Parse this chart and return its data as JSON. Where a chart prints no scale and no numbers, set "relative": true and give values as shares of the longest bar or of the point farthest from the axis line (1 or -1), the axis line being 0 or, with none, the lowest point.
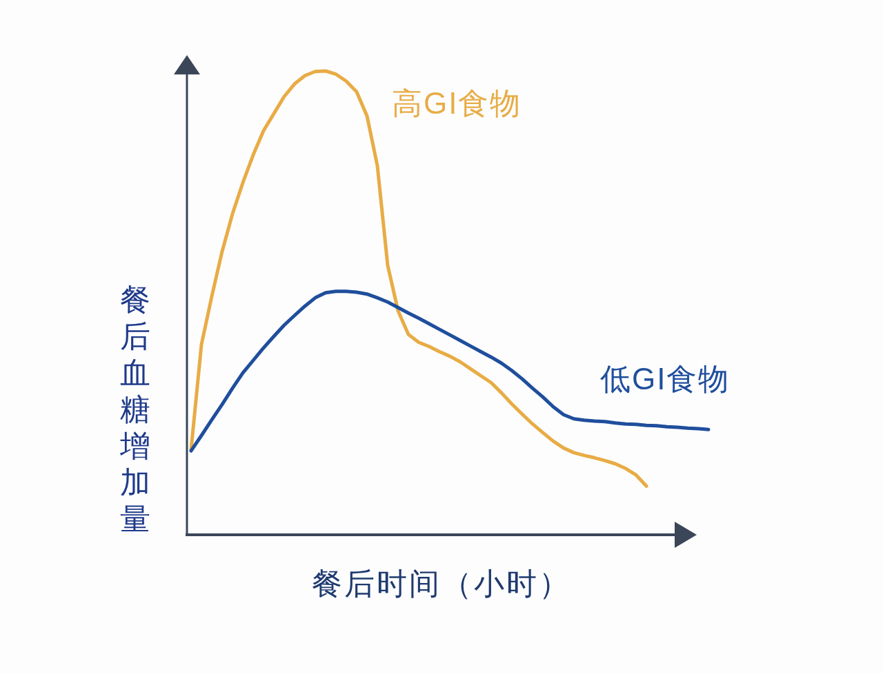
{
  "chart_data": {
    "type": "line",
    "relative": true,
    "xlabel": "餐后时间（小时）",
    "ylabel": "餐后血糖增加量",
    "categories": [
      null,
      null,
      null,
      null,
      null,
      null,
      null,
      null,
      null,
      null,
      null,
      null,
      null,
      null,
      null,
      null,
      null,
      null,
      null,
      null,
      null,
      null,
      null,
      null,
      null,
      null,
      null,
      null,
      null,
      null,
      null,
      null,
      null,
      null,
      null,
      null,
      null,
      null,
      null,
      null,
      null,
      null,
      null,
      null,
      null,
      null,
      null,
      null,
      null,
      null,
      null
    ],
    "series": [
      {
        "name": "高GI食物",
        "color": "#e8ac45",
        "values": [
          0.184,
          0.41,
          0.514,
          0.611,
          0.692,
          0.759,
          0.819,
          0.871,
          0.908,
          0.945,
          0.972,
          0.99,
          0.999,
          1.0,
          0.993,
          0.978,
          0.955,
          0.903,
          0.796,
          0.581,
          0.483,
          0.432,
          0.415,
          0.406,
          0.395,
          0.385,
          0.373,
          0.358,
          0.343,
          0.328,
          0.306,
          0.282,
          0.26,
          0.239,
          0.22,
          0.202,
          0.187,
          0.177,
          0.171,
          0.166,
          0.16,
          0.153,
          0.143,
          0.129,
          0.105,
          null,
          null,
          null,
          null,
          null,
          null
        ]
      },
      {
        "name": "低GI食物",
        "color": "#1f4e9c",
        "values": [
          0.181,
          0.214,
          0.248,
          0.281,
          0.316,
          0.349,
          0.376,
          0.403,
          0.428,
          0.452,
          0.473,
          0.493,
          0.511,
          0.522,
          0.525,
          0.525,
          0.523,
          0.519,
          0.511,
          0.502,
          0.49,
          0.478,
          0.467,
          0.455,
          0.443,
          0.431,
          0.419,
          0.407,
          0.395,
          0.383,
          0.37,
          0.354,
          0.336,
          0.316,
          0.297,
          0.276,
          0.259,
          0.25,
          0.247,
          0.245,
          0.244,
          0.241,
          0.239,
          0.238,
          0.236,
          0.235,
          0.233,
          0.232,
          0.23,
          0.229,
          0.227
        ]
      }
    ]
  }
}
